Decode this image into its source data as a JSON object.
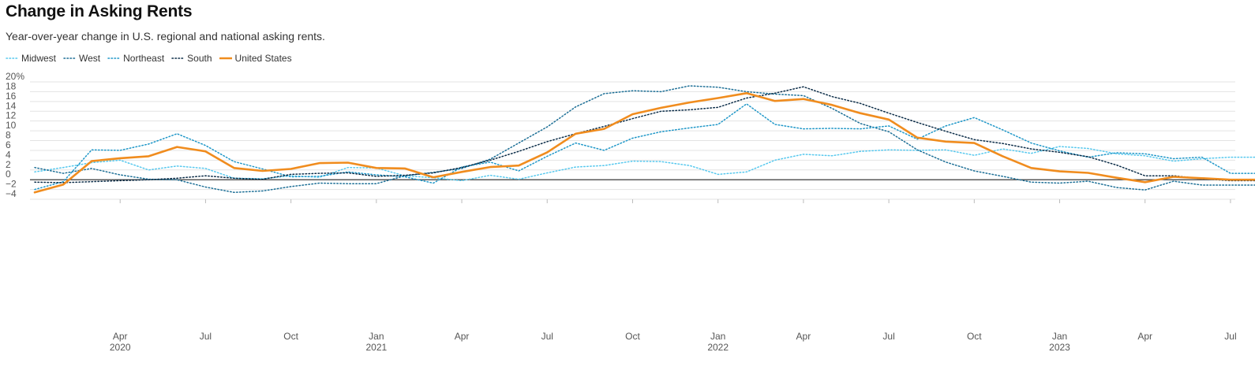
{
  "title": "Change in Asking Rents",
  "subtitle": "Year-over-year change in U.S. regional and national asking rents.",
  "chart_data": {
    "type": "line",
    "title": "Change in Asking Rents",
    "subtitle": "Year-over-year change in U.S. regional and national asking rents.",
    "xlabel": "",
    "ylabel": "",
    "ylim": [
      -4,
      20
    ],
    "y_ticks": [
      "20%",
      "18",
      "16",
      "14",
      "12",
      "10",
      "8",
      "6",
      "4",
      "2",
      "0",
      "−2",
      "−4"
    ],
    "x_ticks": [
      {
        "month": "Apr",
        "year": "2020"
      },
      {
        "month": "Jul",
        "year": ""
      },
      {
        "month": "Oct",
        "year": ""
      },
      {
        "month": "Jan",
        "year": "2021"
      },
      {
        "month": "Apr",
        "year": ""
      },
      {
        "month": "Jul",
        "year": ""
      },
      {
        "month": "Oct",
        "year": ""
      },
      {
        "month": "Jan",
        "year": "2022"
      },
      {
        "month": "Apr",
        "year": ""
      },
      {
        "month": "Jul",
        "year": ""
      },
      {
        "month": "Oct",
        "year": ""
      },
      {
        "month": "Jan",
        "year": "2023"
      },
      {
        "month": "Apr",
        "year": ""
      },
      {
        "month": "Jul",
        "year": ""
      }
    ],
    "grid": true,
    "legend_position": "top-left",
    "x": [
      "2020-01",
      "2020-02",
      "2020-03",
      "2020-04",
      "2020-05",
      "2020-06",
      "2020-07",
      "2020-08",
      "2020-09",
      "2020-10",
      "2020-11",
      "2020-12",
      "2021-01",
      "2021-02",
      "2021-03",
      "2021-04",
      "2021-05",
      "2021-06",
      "2021-07",
      "2021-08",
      "2021-09",
      "2021-10",
      "2021-11",
      "2021-12",
      "2022-01",
      "2022-02",
      "2022-03",
      "2022-04",
      "2022-05",
      "2022-06",
      "2022-07",
      "2022-08",
      "2022-09",
      "2022-10",
      "2022-11",
      "2022-12",
      "2023-01",
      "2023-02",
      "2023-03",
      "2023-04",
      "2023-05",
      "2023-06",
      "2023-07",
      "2023-08"
    ],
    "series": [
      {
        "name": "Midwest",
        "color": "#56c8ee",
        "style": "dotted",
        "values": [
          1.6,
          2.5,
          3.5,
          4.0,
          2.0,
          2.8,
          2.3,
          0.3,
          0.2,
          0.8,
          0.5,
          2.5,
          2.4,
          0.8,
          0.4,
          -0.2,
          0.9,
          0.1,
          1.4,
          2.6,
          2.9,
          3.8,
          3.7,
          2.9,
          1.1,
          1.6,
          4.0,
          5.2,
          4.9,
          5.8,
          6.1,
          6.0,
          6.1,
          5.0,
          6.3,
          5.4,
          6.8,
          6.4,
          5.3,
          4.9,
          3.8,
          4.3,
          4.6,
          4.6
        ]
      },
      {
        "name": "West",
        "color": "#1d6f96",
        "style": "dotted",
        "values": [
          2.5,
          1.3,
          2.3,
          1.0,
          0.1,
          0.0,
          -1.5,
          -2.6,
          -2.3,
          -1.4,
          -0.7,
          -0.8,
          -0.8,
          0.8,
          1.5,
          2.3,
          4.2,
          7.5,
          10.8,
          14.9,
          17.6,
          18.2,
          18.0,
          19.2,
          18.9,
          18.0,
          17.5,
          17.2,
          14.6,
          11.5,
          9.8,
          6.1,
          3.6,
          1.8,
          0.7,
          -0.5,
          -0.7,
          -0.3,
          -1.6,
          -2.1,
          -0.3,
          -1.1,
          -1.1,
          -1.1
        ]
      },
      {
        "name": "Northeast",
        "color": "#1f97c8",
        "style": "dotted",
        "values": [
          -2.0,
          -0.4,
          6.1,
          6.0,
          7.3,
          9.4,
          7.0,
          3.7,
          2.2,
          0.6,
          0.7,
          1.6,
          1.0,
          0.6,
          -0.7,
          2.6,
          3.6,
          1.8,
          4.8,
          7.5,
          6.0,
          8.5,
          9.8,
          10.6,
          11.3,
          15.5,
          11.3,
          10.4,
          10.5,
          10.4,
          11.0,
          8.3,
          11.0,
          12.7,
          10.2,
          7.5,
          5.9,
          4.6,
          5.5,
          5.3,
          4.3,
          4.6,
          1.3,
          1.3
        ]
      },
      {
        "name": "South",
        "color": "#0c2d48",
        "style": "dotted",
        "values": [
          -0.5,
          -0.6,
          -0.4,
          -0.2,
          0.0,
          0.3,
          0.8,
          0.3,
          0.1,
          1.1,
          1.3,
          1.4,
          0.7,
          0.9,
          1.4,
          2.5,
          4.0,
          5.8,
          7.8,
          9.4,
          10.9,
          12.5,
          14.0,
          14.3,
          14.8,
          16.7,
          17.7,
          19.0,
          17.0,
          15.6,
          13.6,
          11.7,
          9.9,
          8.2,
          7.4,
          6.3,
          5.6,
          4.7,
          3.0,
          0.8,
          0.8,
          0.2,
          -0.2,
          -0.2
        ]
      },
      {
        "name": "United States",
        "color": "#f08c1e",
        "style": "solid",
        "values": [
          -2.6,
          -1.0,
          3.8,
          4.4,
          4.8,
          6.7,
          5.8,
          2.4,
          1.8,
          2.2,
          3.4,
          3.5,
          2.4,
          2.3,
          0.5,
          1.6,
          2.6,
          2.9,
          5.6,
          9.4,
          10.4,
          13.4,
          14.7,
          15.8,
          16.7,
          17.7,
          16.1,
          16.5,
          15.3,
          13.6,
          12.3,
          8.6,
          7.8,
          7.5,
          4.8,
          2.4,
          1.7,
          1.4,
          0.4,
          -0.5,
          0.6,
          0.3,
          0.0,
          0.0
        ]
      }
    ]
  }
}
